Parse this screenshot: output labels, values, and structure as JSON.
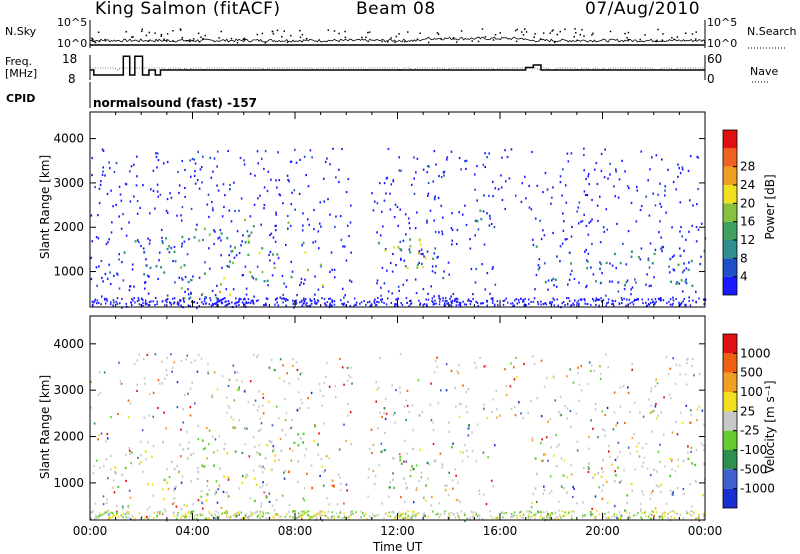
{
  "header": {
    "station": "King Salmon (fitACF)",
    "beam": "Beam 08",
    "date": "07/Aug/2010"
  },
  "summary_panel": {
    "nsky_label": "N.Sky",
    "nsearch_label": "N.Search",
    "freq_label_1": "Freq.",
    "freq_label_2": "[MHz]",
    "nave_label": "Nave",
    "cpid_label": "CPID",
    "cpid_value": "normalsound (fast) -157",
    "left_ticks_top": [
      "10^5",
      "10^0"
    ],
    "right_ticks_top": [
      "10^5",
      "10^0"
    ],
    "freq_ticks": [
      "18",
      "8"
    ],
    "nave_ticks": [
      "60",
      "0"
    ],
    "frequency_steps": [
      {
        "t": 0.0,
        "f": 12
      },
      {
        "t": 0.15,
        "f": 10
      },
      {
        "t": 1.3,
        "f": 17.5
      },
      {
        "t": 1.55,
        "f": 10
      },
      {
        "t": 1.75,
        "f": 17.5
      },
      {
        "t": 2.05,
        "f": 10
      },
      {
        "t": 2.3,
        "f": 12
      },
      {
        "t": 2.55,
        "f": 10
      },
      {
        "t": 2.75,
        "f": 12
      },
      {
        "t": 17.0,
        "f": 13
      },
      {
        "t": 17.3,
        "f": 14
      },
      {
        "t": 17.6,
        "f": 12
      },
      {
        "t": 24.0,
        "f": 12
      }
    ]
  },
  "chart_data": [
    {
      "type": "heatmap",
      "name": "power",
      "ylabel": "Slant Range [km]",
      "y_ticks": [
        "1000",
        "2000",
        "3000",
        "4000"
      ],
      "ylim": [
        200,
        4600
      ],
      "xlim": [
        0,
        24
      ],
      "colorbar": {
        "label": "Power [dB]",
        "ticks": [
          "4",
          "8",
          "12",
          "16",
          "20",
          "24",
          "28"
        ],
        "colors": [
          "#1a1aff",
          "#1f50c8",
          "#2f8f8f",
          "#3fa060",
          "#88c040",
          "#f0e020",
          "#f0a020",
          "#f06020",
          "#e01010"
        ]
      },
      "regions": [
        {
          "t0": 2.7,
          "t1": 7.3,
          "r0": 400,
          "r1": 2000,
          "level": 3
        },
        {
          "t0": 6.0,
          "t1": 8.4,
          "r0": 1400,
          "r1": 2300,
          "level": 4
        },
        {
          "t0": 4.7,
          "t1": 5.9,
          "r0": 500,
          "r1": 900,
          "level": 6
        },
        {
          "t0": 7.8,
          "t1": 9.3,
          "r0": 700,
          "r1": 1200,
          "level": 4
        },
        {
          "t0": 11.0,
          "t1": 14.1,
          "r0": 900,
          "r1": 1800,
          "level": 4
        },
        {
          "t0": 12.2,
          "t1": 13.2,
          "r0": 1100,
          "r1": 1600,
          "level": 5
        },
        {
          "t0": 17.2,
          "t1": 24.0,
          "r0": 700,
          "r1": 1600,
          "level": 2
        },
        {
          "t0": 18.0,
          "t1": 22.0,
          "r0": 1200,
          "r1": 1400,
          "level": 3
        },
        {
          "t0": 0.9,
          "t1": 3.0,
          "r0": 900,
          "r1": 1800,
          "level": 2
        },
        {
          "t0": 14.5,
          "t1": 15.8,
          "r0": 2000,
          "r1": 2600,
          "level": 2
        }
      ]
    },
    {
      "type": "heatmap",
      "name": "velocity",
      "ylabel": "Slant Range [km]",
      "xlabel": "Time UT",
      "x_ticks": [
        "00:00",
        "04:00",
        "08:00",
        "12:00",
        "16:00",
        "20:00",
        "00:00"
      ],
      "y_ticks": [
        "1000",
        "2000",
        "3000",
        "4000"
      ],
      "ylim": [
        200,
        4600
      ],
      "xlim": [
        0,
        24
      ],
      "colorbar": {
        "label": "Velocity [m s⁻¹]",
        "ticks": [
          "1000",
          "500",
          "100",
          "25",
          "-25",
          "-100",
          "-500",
          "-1000"
        ],
        "colors": [
          "#1a2fcf",
          "#3f60cf",
          "#2f8f50",
          "#66cc33",
          "#c8c8c8",
          "#f0e020",
          "#f0a020",
          "#f06010",
          "#e01010"
        ]
      },
      "regions": [
        {
          "t0": 2.7,
          "t1": 7.3,
          "r0": 400,
          "r1": 2000,
          "level": 4
        },
        {
          "t0": 6.0,
          "t1": 9.0,
          "r0": 1400,
          "r1": 2300,
          "level": 4
        },
        {
          "t0": 7.7,
          "t1": 9.5,
          "r0": 800,
          "r1": 1300,
          "level": 7
        },
        {
          "t0": 11.0,
          "t1": 14.3,
          "r0": 900,
          "r1": 1800,
          "level": 3
        },
        {
          "t0": 14.5,
          "t1": 15.5,
          "r0": 2100,
          "r1": 2500,
          "level": 2
        },
        {
          "t0": 17.2,
          "t1": 24.0,
          "r0": 700,
          "r1": 1600,
          "level": 4
        },
        {
          "t0": 0.9,
          "t1": 3.0,
          "r0": 900,
          "r1": 1800,
          "level": 4
        },
        {
          "t0": 0.0,
          "t1": 24.0,
          "r0": 220,
          "r1": 420,
          "level": 3
        }
      ]
    }
  ]
}
